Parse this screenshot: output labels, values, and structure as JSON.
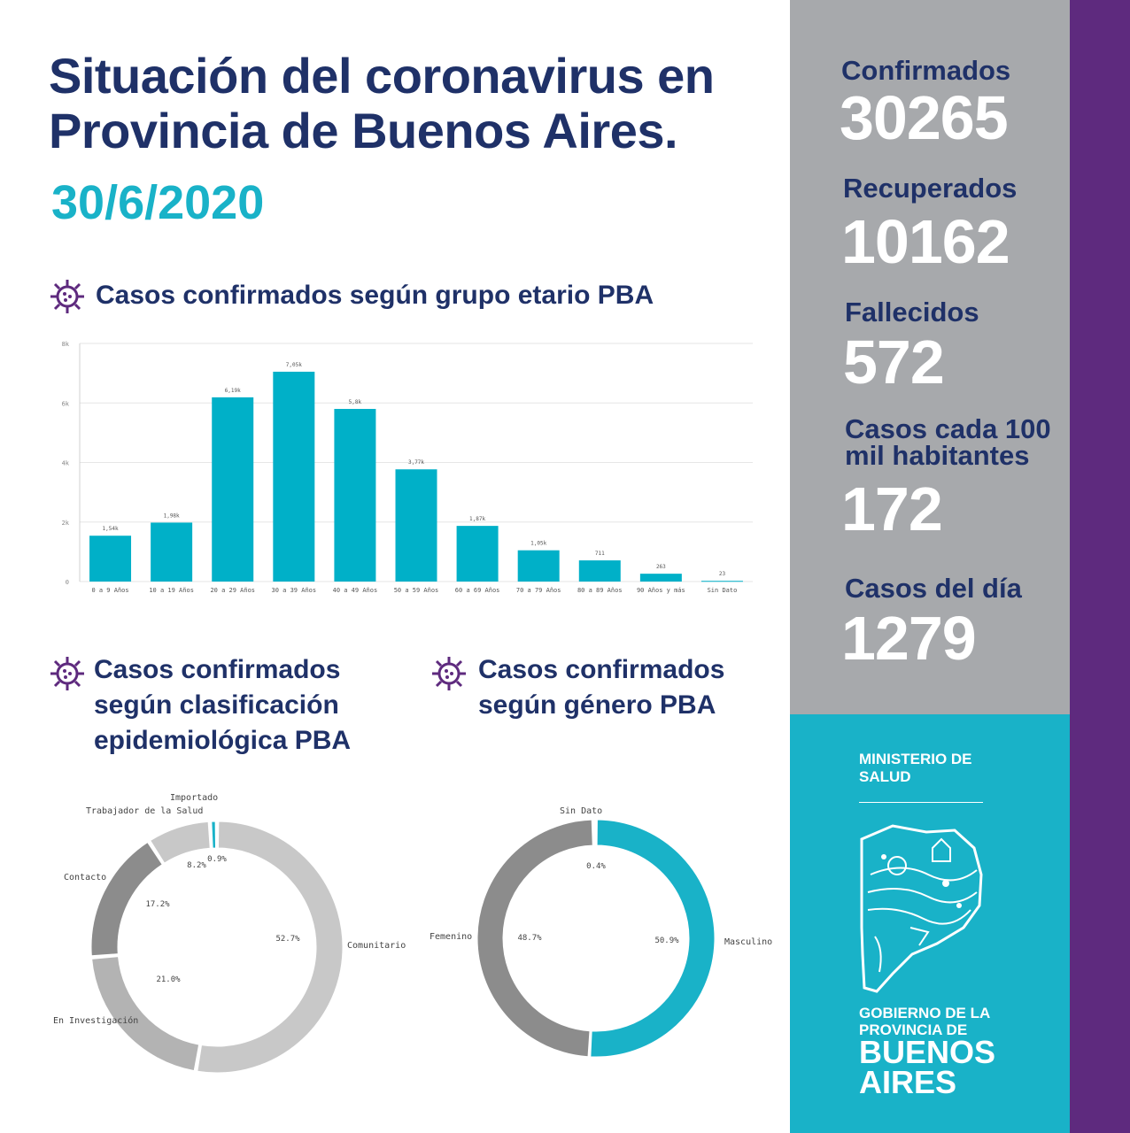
{
  "header": {
    "title": "Situación del coronavirus en Provincia de Buenos Aires.",
    "date": "30/6/2020"
  },
  "sections": {
    "age": "Casos confirmados según grupo etario PBA",
    "classification": "Casos confirmados según clasificación epidemiológica PBA",
    "gender": "Casos confirmados según género PBA"
  },
  "stats": [
    {
      "label": "Confirmados",
      "value": "30265"
    },
    {
      "label": "Recuperados",
      "value": "10162"
    },
    {
      "label": "Fallecidos",
      "value": "572"
    },
    {
      "label": "Casos cada 100 mil habitantes",
      "value": "172"
    },
    {
      "label": "Casos del día",
      "value": "1279"
    }
  ],
  "branding": {
    "ministry": "MINISTERIO DE\nSALUD",
    "gov_small": "GOBIERNO DE LA\nPROVINCIA DE",
    "gov_big": "BUENOS\nAIRES"
  },
  "colors": {
    "navy": "#1f3168",
    "teal": "#19b2c8",
    "bar": "#00b0c8",
    "gray_panel": "#a7a9ac",
    "purple": "#5e2a7e",
    "virus_icon": "#5e2a7e"
  },
  "icons": [
    "virus-icon",
    "buenos-aires-map-logo"
  ],
  "chart_data": [
    {
      "type": "bar",
      "categories": [
        "0 a 9 Años",
        "10 a 19 Años",
        "20 a 29 Años",
        "30 a 39 Años",
        "40 a 49 Años",
        "50 a 59 Años",
        "60 a 69 Años",
        "70 a 79 Años",
        "80 a 89 Años",
        "90 Años y más",
        "Sin Dato"
      ],
      "values": [
        1540,
        1980,
        6190,
        7050,
        5800,
        3770,
        1870,
        1050,
        711,
        263,
        23
      ],
      "value_labels": [
        "1,54k",
        "1,98k",
        "6,19k",
        "7,05k",
        "5,8k",
        "3,77k",
        "1,87k",
        "1,05k",
        "711",
        "263",
        "23"
      ],
      "yticks": [
        "0",
        "2k",
        "4k",
        "6k",
        "8k"
      ],
      "ylim": [
        0,
        8000
      ],
      "grid": true
    },
    {
      "type": "pie",
      "labels": [
        "Comunitario",
        "En Investigación",
        "Contacto",
        "Trabajador de la Salud",
        "Importado"
      ],
      "values": [
        52.7,
        21.0,
        17.2,
        8.2,
        0.9
      ],
      "value_labels": [
        "52.7%",
        "21.0%",
        "17.2%",
        "8.2%",
        "0.9%"
      ],
      "colors": [
        "#c8c8c8",
        "#b3b3b3",
        "#8c8c8c",
        "#c8c8c8",
        "#19b2c8"
      ]
    },
    {
      "type": "pie",
      "labels": [
        "Masculino",
        "Femenino",
        "Sin Dato"
      ],
      "values": [
        50.9,
        48.7,
        0.4
      ],
      "value_labels": [
        "50.9%",
        "48.7%",
        "0.4%"
      ],
      "colors": [
        "#19b2c8",
        "#8c8c8c",
        "#333333"
      ]
    }
  ]
}
